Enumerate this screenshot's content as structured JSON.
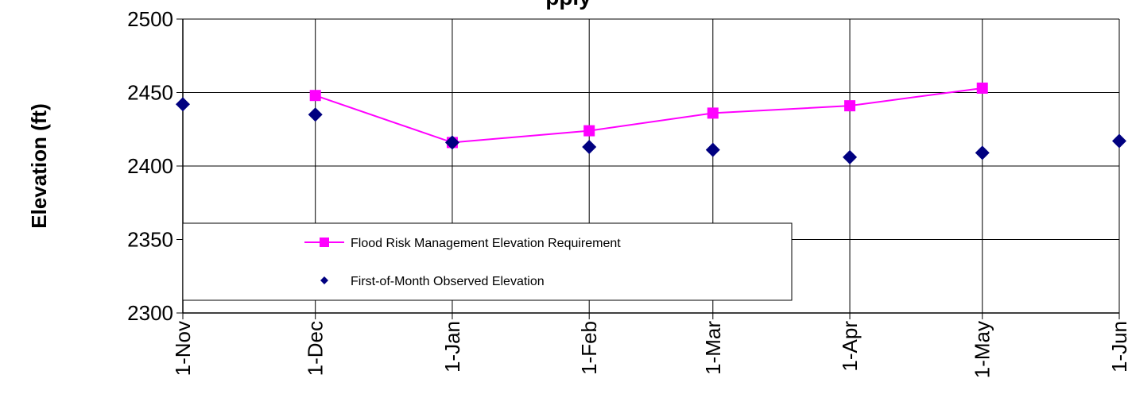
{
  "chart_data": {
    "type": "line",
    "title": "",
    "title_visible_fragment": "pply",
    "xlabel": "",
    "ylabel": "Elevation (ft)",
    "ylim": [
      2300,
      2500
    ],
    "yticks": [
      "2300",
      "2350",
      "2400",
      "2450",
      "2500"
    ],
    "categories": [
      "1-Nov",
      "1-Dec",
      "1-Jan",
      "1-Feb",
      "1-Mar",
      "1-Apr",
      "1-May",
      "1-Jun"
    ],
    "x_days": [
      0,
      30,
      61,
      92,
      120,
      151,
      181,
      212
    ],
    "grid": true,
    "legend_position": "bottom-left inside plot",
    "series": [
      {
        "name": "Flood Risk Management Elevation Requirement",
        "color": "#ff00ff",
        "marker": "square",
        "line": true,
        "values": [
          null,
          2448,
          2416,
          2424,
          2436,
          2441,
          2453,
          null
        ]
      },
      {
        "name": "First-of-Month Observed Elevation",
        "color": "#000080",
        "marker": "diamond",
        "line": false,
        "values": [
          2442,
          2435,
          2416,
          2413,
          2411,
          2406,
          2409,
          2417
        ]
      }
    ]
  }
}
